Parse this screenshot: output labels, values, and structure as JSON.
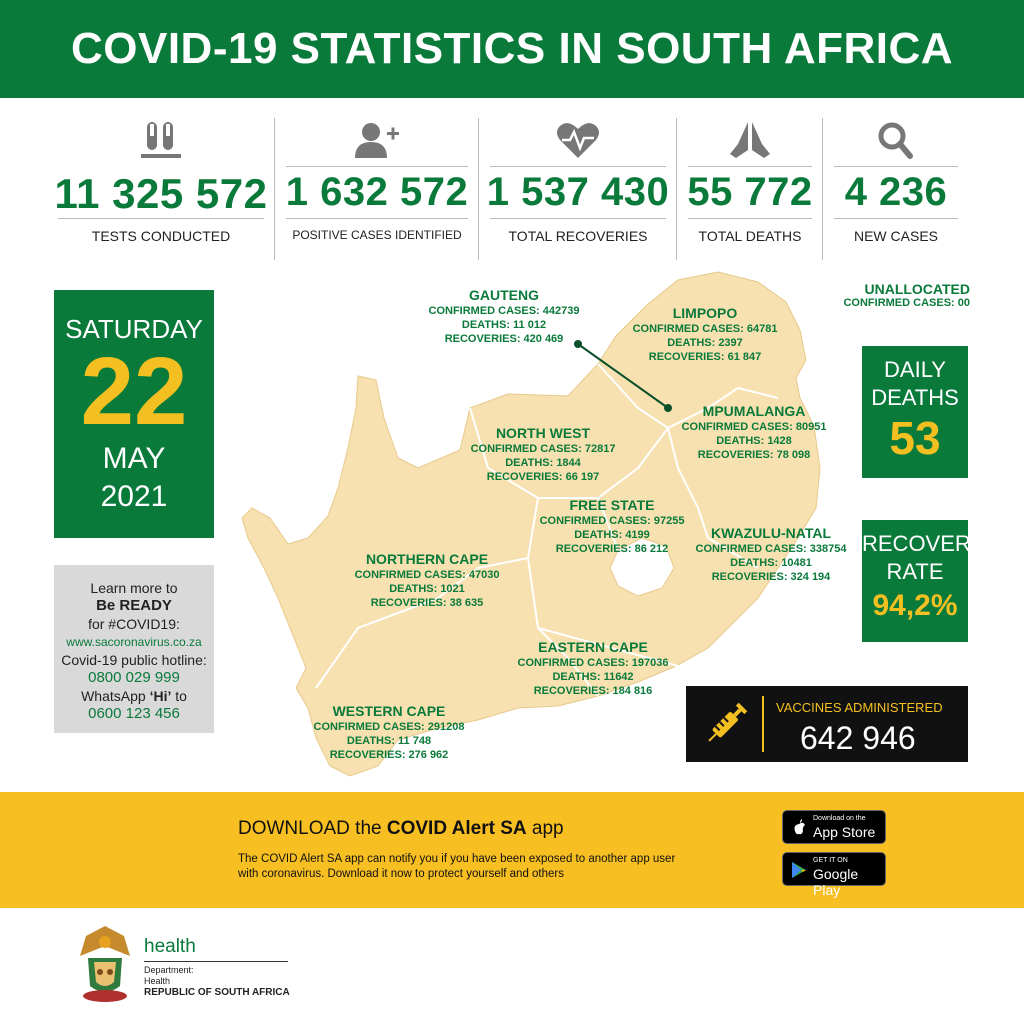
{
  "header": {
    "title": "COVID-19 STATISTICS IN SOUTH AFRICA"
  },
  "stats": [
    {
      "icon": "test-tubes-icon",
      "value": "11 325 572",
      "label": "TESTS CONDUCTED"
    },
    {
      "icon": "add-person-icon",
      "value": "1 632 572",
      "label": "POSITIVE CASES IDENTIFIED"
    },
    {
      "icon": "heartbeat-icon",
      "value": "1 537 430",
      "label": "TOTAL RECOVERIES"
    },
    {
      "icon": "praying-hands-icon",
      "value": "55 772",
      "label": "TOTAL DEATHS"
    },
    {
      "icon": "search-icon",
      "value": "4 236",
      "label": "NEW CASES"
    }
  ],
  "date": {
    "weekday": "SATURDAY",
    "day": "22",
    "month": "MAY",
    "year": "2021"
  },
  "info": {
    "line1": "Learn more to",
    "line2": "Be READY",
    "line3": "for #COVID19:",
    "url": "www.sacoronavirus.co.za",
    "hotline_label": "Covid-19 public hotline:",
    "hotline": "0800 029 999",
    "whatsapp_pre": "WhatsApp ",
    "whatsapp_hi": "‘Hi’",
    "whatsapp_post": " to",
    "whatsapp": "0600 123 456"
  },
  "provinces": {
    "gauteng": {
      "name": "GAUTENG",
      "cases": "CONFIRMED CASES: 442739",
      "deaths": "DEATHS: 11 012",
      "recoveries": "RECOVERIES: 420 469"
    },
    "limpopo": {
      "name": "LIMPOPO",
      "cases": "CONFIRMED CASES: 64781",
      "deaths": "DEATHS: 2397",
      "recoveries": "RECOVERIES: 61 847"
    },
    "north_west": {
      "name": "NORTH WEST",
      "cases": "CONFIRMED CASES: 72817",
      "deaths": "DEATHS: 1844",
      "recoveries": "RECOVERIES: 66 197"
    },
    "mpumalanga": {
      "name": "MPUMALANGA",
      "cases": "CONFIRMED CASES: 80951",
      "deaths": "DEATHS: 1428",
      "recoveries": "RECOVERIES: 78 098"
    },
    "free_state": {
      "name": "FREE STATE",
      "cases": "CONFIRMED CASES: 97255",
      "deaths": "DEATHS: 4199",
      "recoveries": "RECOVERIES: 86 212"
    },
    "kwazulu_natal": {
      "name": "KWAZULU-NATAL",
      "cases": "CONFIRMED CASES: 338754",
      "deaths": "DEATHS: 10481",
      "recoveries": "RECOVERIES: 324 194"
    },
    "northern_cape": {
      "name": "NORTHERN CAPE",
      "cases": "CONFIRMED CASES: 47030",
      "deaths": "DEATHS: 1021",
      "recoveries": "RECOVERIES: 38 635"
    },
    "eastern_cape": {
      "name": "EASTERN CAPE",
      "cases": "CONFIRMED CASES: 197036",
      "deaths": "DEATHS: 11642",
      "recoveries": "RECOVERIES: 184 816"
    },
    "western_cape": {
      "name": "WESTERN CAPE",
      "cases": "CONFIRMED CASES: 291208",
      "deaths": "DEATHS: 11 748",
      "recoveries": "RECOVERIES: 276 962"
    }
  },
  "unallocated": {
    "name": "UNALLOCATED",
    "cases": "CONFIRMED CASES: 00"
  },
  "daily_deaths": {
    "label1": "DAILY",
    "label2": "DEATHS",
    "value": "53"
  },
  "recovery_rate": {
    "label1": "RECOVERY",
    "label2": "RATE",
    "value": "94,2%"
  },
  "vaccines": {
    "icon": "syringe-icon",
    "label": "VACCINES ADMINISTERED",
    "value": "642 946"
  },
  "banner": {
    "download_pre": "DOWNLOAD the ",
    "app_name": "COVID Alert SA",
    "download_post": " app",
    "description": "The COVID Alert SA app can notify you if you have been exposed to another app user with coronavirus. Download it now to protect yourself and others",
    "app_store_small": "Download on the",
    "app_store": "App Store",
    "google_small": "GET IT ON",
    "google": "Google Play"
  },
  "footer": {
    "health": "health",
    "dept1": "Department:",
    "dept2": "Health",
    "country": "REPUBLIC OF SOUTH AFRICA"
  },
  "colors": {
    "green": "#0a7a3b",
    "yellow": "#f4c021",
    "map": "#f7e1b0"
  }
}
